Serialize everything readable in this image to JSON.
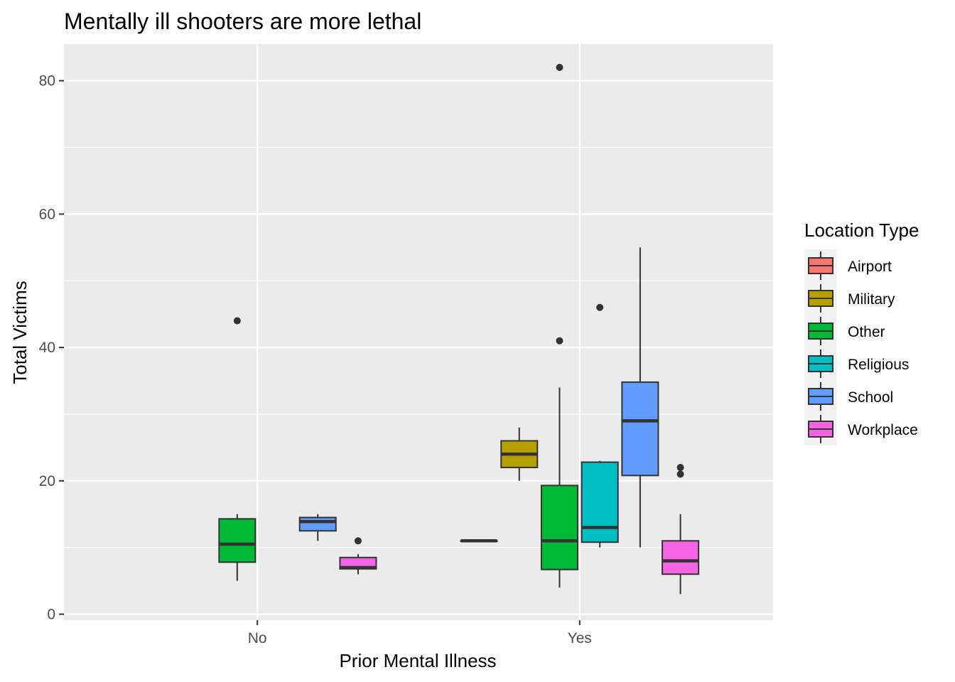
{
  "chart_data": {
    "type": "boxplot",
    "title": "Mentally ill shooters are more lethal",
    "xlabel": "Prior Mental Illness",
    "ylabel": "Total Victims",
    "categories": [
      "No",
      "Yes"
    ],
    "ylim": [
      -0.9,
      85.5
    ],
    "yticks": [
      0,
      20,
      40,
      60,
      80
    ],
    "grid": true,
    "colors": {
      "panel": "#ebebeb",
      "grid": "#ffffff",
      "outline": "#333333"
    },
    "legend": {
      "title": "Location Type",
      "placement": "right",
      "entries": [
        {
          "label": "Airport",
          "color": "#F8766D"
        },
        {
          "label": "Military",
          "color": "#B79F00"
        },
        {
          "label": "Other",
          "color": "#00BA38"
        },
        {
          "label": "Religious",
          "color": "#00BFC4"
        },
        {
          "label": "School",
          "color": "#619CFF"
        },
        {
          "label": "Workplace",
          "color": "#F564E3"
        }
      ]
    },
    "series": [
      {
        "name": "Other",
        "category": "No",
        "slot": 2,
        "min": 5,
        "q1": 7.8,
        "median": 10.5,
        "q3": 14.3,
        "max": 15,
        "outliers": [
          44
        ]
      },
      {
        "name": "School",
        "category": "No",
        "slot": 4,
        "min": 11,
        "q1": 12.5,
        "median": 13.9,
        "q3": 14.5,
        "max": 15,
        "outliers": []
      },
      {
        "name": "Workplace",
        "category": "No",
        "slot": 5,
        "min": 6,
        "q1": 6.8,
        "median": 7,
        "q3": 8.5,
        "max": 9,
        "outliers": [
          11
        ]
      },
      {
        "name": "Airport",
        "category": "Yes",
        "slot": 0,
        "min": 11,
        "q1": 11,
        "median": 11,
        "q3": 11,
        "max": 11,
        "outliers": []
      },
      {
        "name": "Military",
        "category": "Yes",
        "slot": 1,
        "min": 20,
        "q1": 22,
        "median": 24,
        "q3": 26,
        "max": 28,
        "outliers": []
      },
      {
        "name": "Other",
        "category": "Yes",
        "slot": 2,
        "min": 4,
        "q1": 6.7,
        "median": 11,
        "q3": 19.3,
        "max": 34,
        "outliers": [
          41,
          82
        ]
      },
      {
        "name": "Religious",
        "category": "Yes",
        "slot": 3,
        "min": 10,
        "q1": 10.8,
        "median": 13,
        "q3": 22.8,
        "max": 23,
        "outliers": [
          46
        ]
      },
      {
        "name": "School",
        "category": "Yes",
        "slot": 4,
        "min": 10,
        "q1": 20.8,
        "median": 29,
        "q3": 34.8,
        "max": 55,
        "outliers": []
      },
      {
        "name": "Workplace",
        "category": "Yes",
        "slot": 5,
        "min": 3,
        "q1": 6,
        "median": 8,
        "q3": 11,
        "max": 15,
        "outliers": [
          21,
          22
        ]
      }
    ]
  }
}
